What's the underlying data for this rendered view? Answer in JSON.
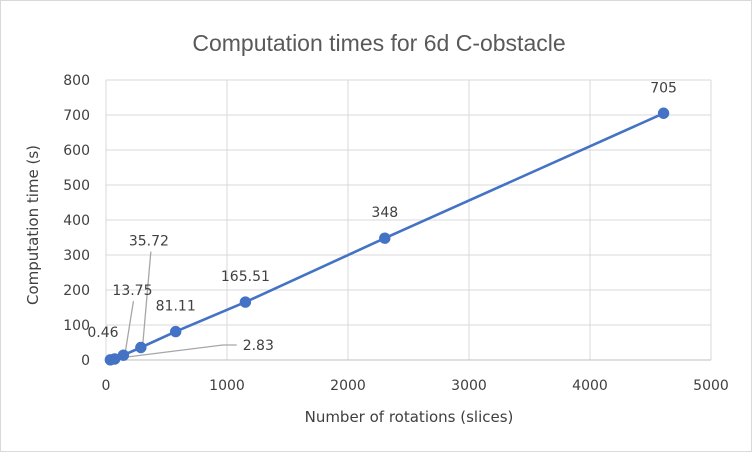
{
  "chart_data": {
    "type": "scatter",
    "title": "Computation times for 6d C-obstacle",
    "xlabel": "Number of rotations (slices)",
    "ylabel": "Computation time (s)",
    "xlim": [
      0,
      5000
    ],
    "ylim": [
      0,
      800
    ],
    "xticks": [
      0,
      1000,
      2000,
      3000,
      4000,
      5000
    ],
    "yticks": [
      0,
      100,
      200,
      300,
      400,
      500,
      600,
      700,
      800
    ],
    "grid": true,
    "legend": "none",
    "series": [
      {
        "color": "#4472c4",
        "x": [
          36,
          72,
          144,
          288,
          576,
          1152,
          2304,
          4608
        ],
        "y": [
          0.46,
          2.83,
          13.75,
          35.72,
          81.11,
          165.51,
          348,
          705
        ],
        "labels": [
          "0.46",
          "2.83",
          "13.75",
          "35.72",
          "81.11",
          "165.51",
          "348",
          "705"
        ]
      }
    ]
  }
}
